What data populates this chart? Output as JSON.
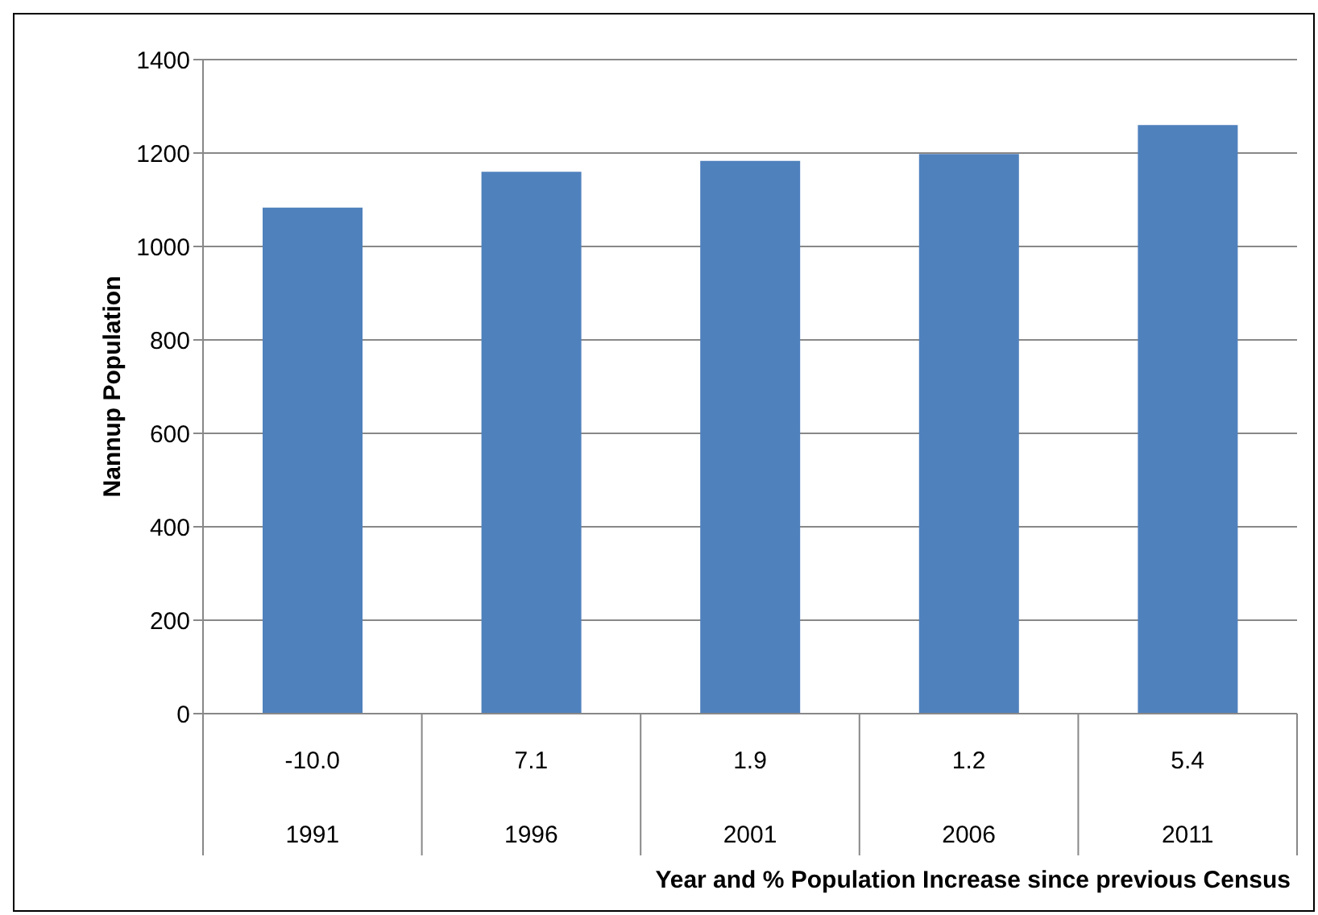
{
  "chart_data": {
    "type": "bar",
    "xlabel": "Year and % Population Increase since previous Census",
    "ylabel": "Nannup Population",
    "categories": [
      "1991",
      "1996",
      "2001",
      "2006",
      "2011"
    ],
    "values": [
      1083,
      1160,
      1183,
      1198,
      1260
    ],
    "color": "#4f81bd",
    "ylim": [
      0,
      1400
    ],
    "yticks": [
      0,
      200,
      400,
      600,
      800,
      1000,
      1200,
      1400
    ],
    "grid": "y",
    "annotations": [
      "-10.0",
      "7.1",
      "1.9",
      "1.2",
      "5.4"
    ]
  }
}
